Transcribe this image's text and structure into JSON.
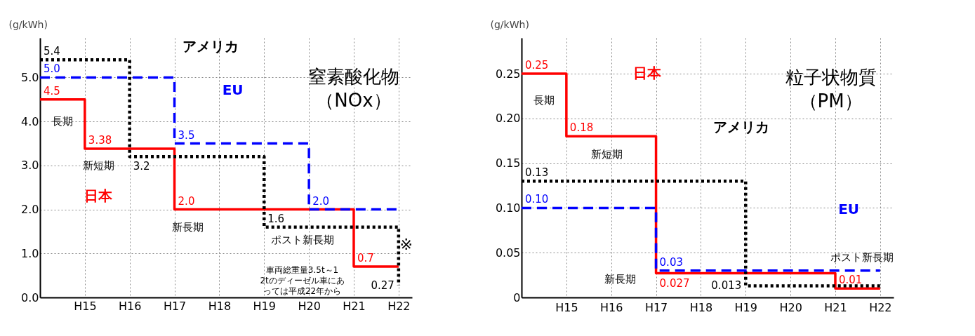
{
  "chart_data": [
    {
      "type": "step",
      "title": "窒素酸化物（NOx）",
      "ylabel": "(g/kWh)",
      "categories": [
        null,
        "H15",
        "H16",
        "H17",
        "H18",
        "H19",
        "H20",
        "H21",
        "H22"
      ],
      "ylim": [
        0,
        5.9
      ],
      "yticks": [
        {
          "value": 0,
          "label": "0.0"
        },
        {
          "value": 1,
          "label": "1.0"
        },
        {
          "value": 2,
          "label": "2.0"
        },
        {
          "value": 3,
          "label": "3.0"
        },
        {
          "value": 4,
          "label": "4.0"
        },
        {
          "value": 5,
          "label": "5.0"
        }
      ],
      "grid": true,
      "legend": false,
      "series": [
        {
          "name": "日本",
          "color": "#ff0000",
          "line_style": "solid",
          "values": [
            4.5,
            3.38,
            3.38,
            2.0,
            2.0,
            2.0,
            2.0,
            0.7,
            0.7
          ],
          "value_labels": [
            "4.5",
            "3.38",
            null,
            "2.0",
            null,
            null,
            null,
            "0.7",
            null
          ]
        },
        {
          "name": "アメリカ",
          "color": "#000000",
          "line_style": "dotted",
          "values": [
            5.4,
            5.4,
            3.2,
            3.2,
            3.2,
            1.6,
            1.6,
            1.6,
            0.27
          ],
          "value_labels": [
            "5.4",
            null,
            "3.2",
            null,
            null,
            "1.6",
            null,
            null,
            "0.27"
          ]
        },
        {
          "name": "EU",
          "color": "#0000ff",
          "line_style": "dashed",
          "values": [
            5.0,
            5.0,
            5.0,
            3.5,
            3.5,
            3.5,
            2.0,
            2.0,
            2.0
          ],
          "value_labels": [
            "5.0",
            null,
            null,
            "3.5",
            null,
            null,
            "2.0",
            null,
            null
          ]
        }
      ],
      "annotations": [
        "長期",
        "新短期",
        "新長期",
        "ポスト新長期",
        "車両総重量3.5t～12tのディーゼル車にあっては平成22年から",
        "※"
      ]
    },
    {
      "type": "step",
      "title": "粒子状物質（PM）",
      "ylabel": "(g/kWh)",
      "categories": [
        null,
        "H15",
        "H16",
        "H17",
        "H18",
        "H19",
        "H20",
        "H21",
        "H22"
      ],
      "ylim": [
        0,
        0.29
      ],
      "yticks": [
        {
          "value": 0,
          "label": "0"
        },
        {
          "value": 0.05,
          "label": "0.05"
        },
        {
          "value": 0.1,
          "label": "0.10"
        },
        {
          "value": 0.15,
          "label": "0.15"
        },
        {
          "value": 0.2,
          "label": "0.20"
        },
        {
          "value": 0.25,
          "label": "0.25"
        }
      ],
      "grid": true,
      "legend": false,
      "series": [
        {
          "name": "日本",
          "color": "#ff0000",
          "line_style": "solid",
          "values": [
            0.25,
            0.18,
            0.18,
            0.027,
            0.027,
            0.027,
            0.027,
            0.01,
            0.01
          ],
          "value_labels": [
            "0.25",
            "0.18",
            null,
            "0.027",
            null,
            null,
            null,
            "0.01",
            null
          ]
        },
        {
          "name": "アメリカ",
          "color": "#000000",
          "line_style": "dotted",
          "values": [
            0.13,
            0.13,
            0.13,
            0.13,
            0.13,
            0.013,
            0.013,
            0.013,
            0.013
          ],
          "value_labels": [
            "0.13",
            null,
            null,
            null,
            null,
            "0.013",
            null,
            null,
            null
          ]
        },
        {
          "name": "EU",
          "color": "#0000ff",
          "line_style": "dashed",
          "values": [
            0.1,
            0.1,
            0.1,
            0.03,
            0.03,
            0.03,
            0.03,
            0.03,
            0.03
          ],
          "value_labels": [
            "0.10",
            null,
            null,
            "0.03",
            null,
            null,
            null,
            null,
            null
          ]
        }
      ],
      "annotations": [
        "長期",
        "新短期",
        "新長期",
        "ポスト新長期"
      ]
    }
  ]
}
